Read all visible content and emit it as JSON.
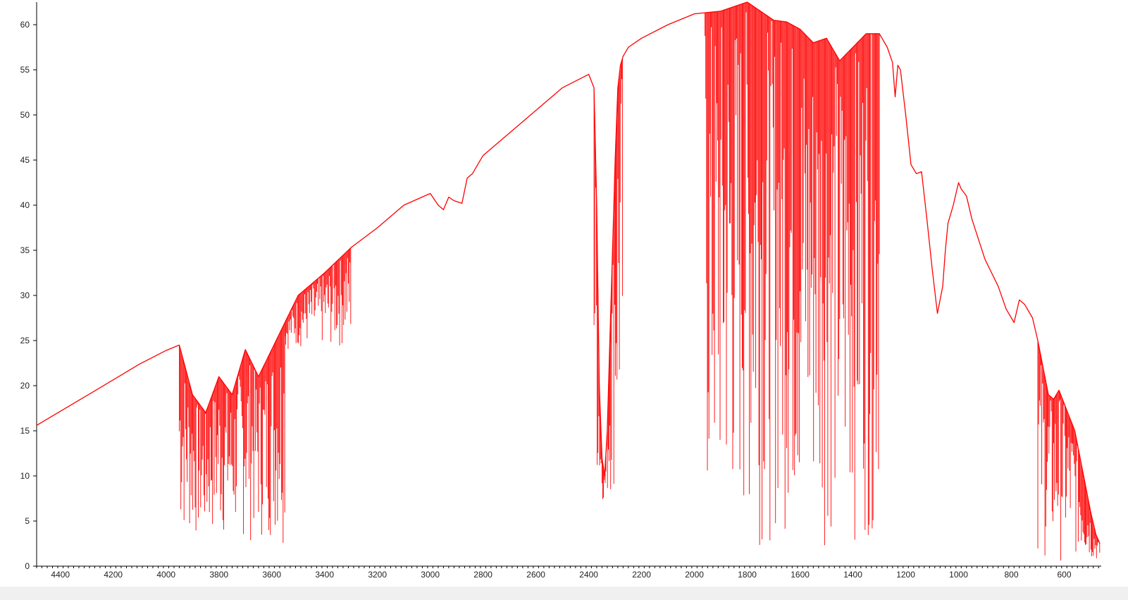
{
  "chart_data": {
    "type": "line",
    "title": "",
    "xlabel": "",
    "ylabel": "",
    "xlim": [
      4490,
      460
    ],
    "ylim": [
      0,
      62.5
    ],
    "x_ticks": [
      4400,
      4200,
      4000,
      3800,
      3600,
      3400,
      3200,
      3000,
      2800,
      2600,
      2400,
      2200,
      2000,
      1800,
      1600,
      1400,
      1200,
      1000,
      800,
      600
    ],
    "y_ticks": [
      0,
      5,
      10,
      15,
      20,
      25,
      30,
      35,
      40,
      45,
      50,
      55,
      60
    ],
    "grid": false,
    "legend": "none",
    "series": [
      {
        "color": "#ff0000",
        "x": [
          4490,
          4300,
          4100,
          4000,
          3950,
          3900,
          3850,
          3800,
          3750,
          3700,
          3650,
          3600,
          3550,
          3500,
          3400,
          3300,
          3200,
          3100,
          3000,
          2970,
          2950,
          2930,
          2910,
          2880,
          2860,
          2840,
          2800,
          2700,
          2600,
          2500,
          2400,
          2380,
          2370,
          2360,
          2350,
          2340,
          2330,
          2320,
          2310,
          2300,
          2290,
          2280,
          2270,
          2260,
          2250,
          2200,
          2100,
          2000,
          1900,
          1850,
          1800,
          1750,
          1700,
          1650,
          1600,
          1550,
          1500,
          1450,
          1400,
          1350,
          1300,
          1270,
          1250,
          1240,
          1230,
          1220,
          1200,
          1180,
          1160,
          1140,
          1120,
          1100,
          1080,
          1060,
          1050,
          1040,
          1030,
          1020,
          1000,
          990,
          970,
          950,
          900,
          850,
          820,
          800,
          790,
          770,
          750,
          720,
          700,
          680,
          660,
          640,
          620,
          600,
          580,
          560,
          540,
          520,
          500,
          480,
          465
        ],
        "y": [
          15.6,
          18.9,
          22.4,
          23.9,
          24.5,
          19.0,
          17.0,
          21.0,
          19.0,
          24.0,
          21.0,
          24.0,
          27.0,
          30.0,
          32.5,
          35.3,
          37.5,
          40.0,
          41.3,
          40.0,
          39.5,
          40.9,
          40.5,
          40.2,
          43.0,
          43.5,
          45.5,
          48.0,
          50.5,
          53.0,
          54.5,
          53.0,
          40.0,
          20.0,
          12.0,
          10.0,
          15.0,
          25.0,
          35.0,
          45.0,
          53.0,
          55.5,
          56.5,
          57.0,
          57.5,
          58.5,
          60.0,
          61.2,
          61.5,
          62.0,
          62.5,
          61.5,
          60.5,
          60.3,
          59.5,
          58.0,
          58.5,
          56.0,
          57.5,
          59.0,
          59.0,
          57.5,
          55.8,
          52.0,
          55.5,
          55.0,
          50.0,
          44.5,
          43.5,
          43.7,
          38.5,
          33.0,
          28.0,
          31.0,
          35.0,
          38.0,
          39.0,
          40.0,
          42.5,
          41.8,
          41.0,
          38.5,
          34.0,
          31.0,
          28.5,
          27.5,
          27.0,
          29.5,
          29.0,
          27.5,
          25.0,
          22.0,
          19.0,
          18.5,
          19.5,
          18.0,
          16.5,
          15.0,
          12.0,
          9.0,
          6.0,
          3.5,
          2.5
        ],
        "absorption_bands": [
          {
            "from": 3950,
            "to": 3550,
            "min": 2.5
          },
          {
            "from": 3550,
            "to": 3300,
            "min": 24.0
          },
          {
            "from": 2380,
            "to": 2270,
            "min": 7.2
          },
          {
            "from": 1960,
            "to": 1300,
            "min": 2.3
          },
          {
            "from": 700,
            "to": 465,
            "min": 0.5
          }
        ]
      }
    ]
  }
}
